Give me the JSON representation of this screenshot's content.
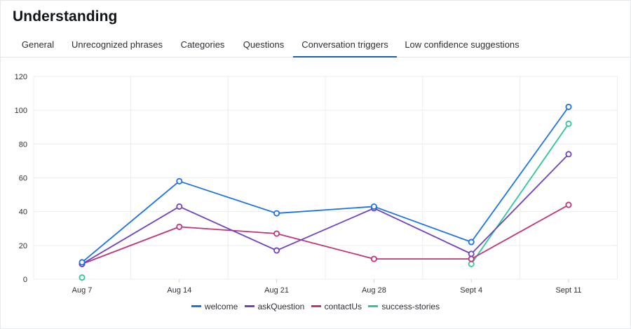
{
  "header": {
    "title": "Understanding"
  },
  "tabs": [
    {
      "label": "General"
    },
    {
      "label": "Unrecognized phrases"
    },
    {
      "label": "Categories"
    },
    {
      "label": "Questions"
    },
    {
      "label": "Conversation triggers",
      "active": true
    },
    {
      "label": "Low confidence suggestions"
    }
  ],
  "colors": {
    "welcome": "#1a73e8",
    "askQuestion": "#6f42c1",
    "contactUs": "#c2337a",
    "success-stories": "#2fc79a"
  },
  "chart_data": {
    "type": "line",
    "categories": [
      "Aug 7",
      "Aug 14",
      "Aug 21",
      "Aug 28",
      "Sept 4",
      "Sept 11"
    ],
    "ylim": [
      0,
      120
    ],
    "yticks": [
      0,
      20,
      40,
      60,
      80,
      100,
      120
    ],
    "grid": true,
    "legend_position": "bottom",
    "series": [
      {
        "name": "welcome",
        "color": "#1a73e8",
        "values": [
          10,
          58,
          39,
          43,
          22,
          102
        ]
      },
      {
        "name": "askQuestion",
        "color": "#6f42c1",
        "values": [
          9,
          43,
          17,
          42,
          15,
          74
        ]
      },
      {
        "name": "contactUs",
        "color": "#c2337a",
        "values": [
          9,
          31,
          27,
          12,
          12,
          44
        ]
      },
      {
        "name": "success-stories",
        "color": "#2fc79a",
        "values": [
          1,
          null,
          null,
          null,
          9,
          92
        ]
      }
    ]
  }
}
